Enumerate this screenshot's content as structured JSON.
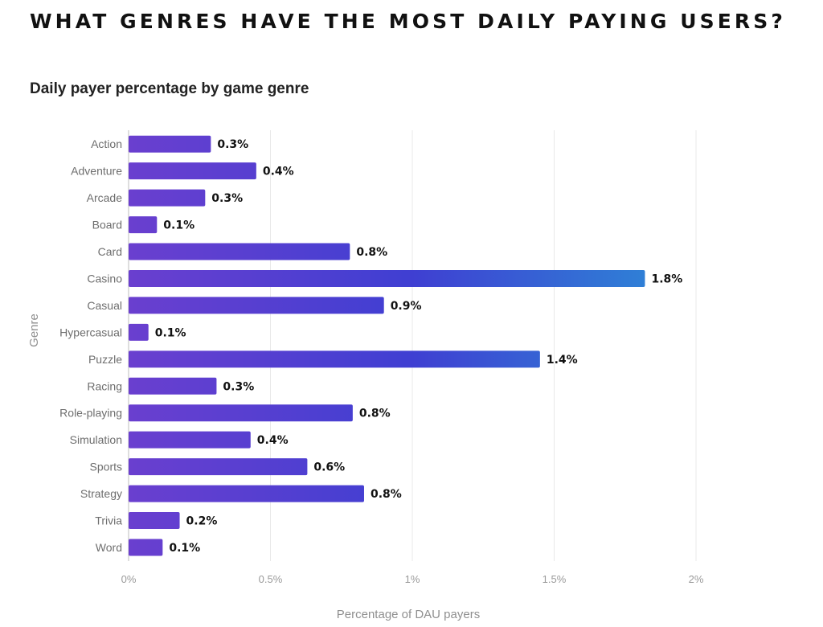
{
  "header": {
    "headline": "WHAT GENRES HAVE THE MOST DAILY PAYING USERS?"
  },
  "chart_data": {
    "type": "bar",
    "orientation": "horizontal",
    "title": "Daily payer percentage by game genre",
    "xlabel": "Percentage of DAU payers",
    "ylabel": "Genre",
    "xlim": [
      0,
      2
    ],
    "xticks": [
      0,
      0.5,
      1,
      1.5,
      2
    ],
    "xtick_labels": [
      "0%",
      "0.5%",
      "1%",
      "1.5%",
      "2%"
    ],
    "grid": true,
    "categories": [
      "Action",
      "Adventure",
      "Arcade",
      "Board",
      "Card",
      "Casino",
      "Casual",
      "Hypercasual",
      "Puzzle",
      "Racing",
      "Role-playing",
      "Simulation",
      "Sports",
      "Strategy",
      "Trivia",
      "Word"
    ],
    "values": [
      0.29,
      0.45,
      0.27,
      0.1,
      0.78,
      1.82,
      0.9,
      0.07,
      1.45,
      0.31,
      0.79,
      0.43,
      0.63,
      0.83,
      0.18,
      0.12
    ],
    "value_labels": [
      "0.3%",
      "0.4%",
      "0.3%",
      "0.1%",
      "0.8%",
      "1.8%",
      "0.9%",
      "0.1%",
      "1.4%",
      "0.3%",
      "0.8%",
      "0.4%",
      "0.6%",
      "0.8%",
      "0.2%",
      "0.1%"
    ],
    "colors": {
      "bar_start": "#6a3fcf",
      "bar_mid": "#3f3fd2",
      "bar_end": "#2f7fd6",
      "grid": "#e9e9e9"
    }
  }
}
